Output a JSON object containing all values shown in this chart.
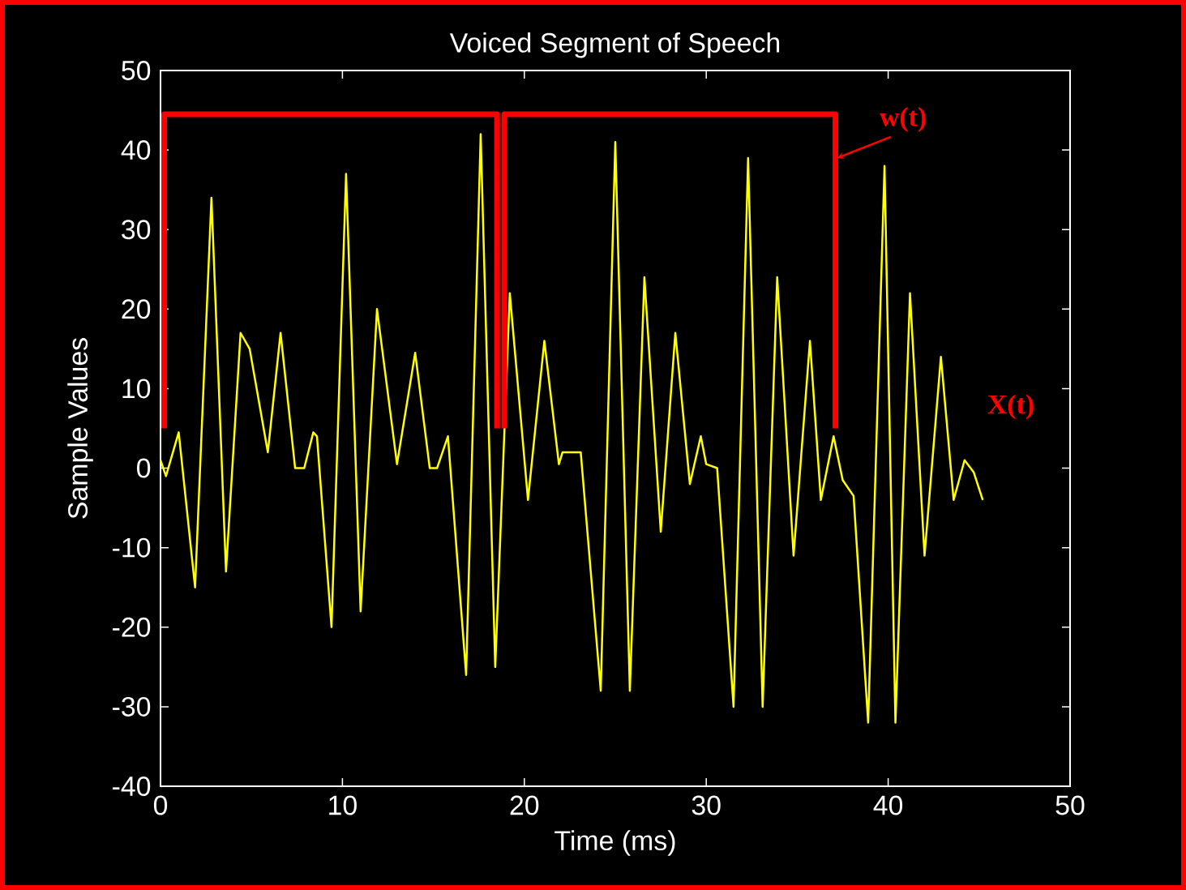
{
  "chart_data": {
    "type": "line",
    "title": "Voiced Segment of Speech",
    "xlabel": "Time (ms)",
    "ylabel": "Sample Values",
    "xlim": [
      0,
      50
    ],
    "ylim": [
      -40,
      50
    ],
    "xticks": [
      0,
      10,
      20,
      30,
      40,
      50
    ],
    "yticks": [
      -40,
      -30,
      -20,
      -10,
      0,
      10,
      20,
      30,
      40,
      50
    ],
    "series": [
      {
        "color": "#ffff00",
        "x": [
          0,
          0.3,
          1.0,
          1.9,
          2.8,
          3.6,
          4.4,
          4.9,
          5.9,
          6.6,
          7.4,
          7.9,
          8.4,
          8.6,
          9.4,
          10.2,
          11.0,
          11.9,
          13.0,
          14.0,
          14.8,
          15.2,
          15.8,
          16.8,
          17.6,
          18.4,
          19.2,
          20.2,
          21.1,
          21.9,
          22.1,
          23.1,
          24.2,
          25.0,
          25.8,
          26.6,
          27.5,
          28.3,
          29.1,
          29.7,
          30.0,
          30.6,
          31.5,
          32.3,
          33.1,
          33.9,
          34.8,
          35.7,
          36.3,
          37.0,
          37.5,
          38.1,
          38.9,
          39.8,
          40.4,
          41.2,
          42.0,
          42.9,
          43.6,
          44.2,
          44.7,
          45.2
        ],
        "values": [
          1,
          -1,
          4.5,
          -15,
          34,
          -13,
          17,
          15,
          2,
          17,
          0,
          0,
          4.5,
          4,
          -20,
          37,
          -18,
          20,
          0.5,
          14.5,
          0,
          0,
          4,
          -26,
          42,
          -25,
          22,
          -4,
          16,
          0.5,
          2,
          2,
          -28,
          41,
          -28,
          24,
          -8,
          17,
          -2,
          4,
          0.5,
          0,
          -30,
          39,
          -30,
          24,
          -11,
          16,
          -4,
          4,
          -1.5,
          -3.5,
          -32,
          38,
          -32,
          22,
          -11,
          14,
          -4,
          1,
          -0.5,
          -4
        ]
      },
      {
        "color": "#ff0000",
        "x": [
          0.2,
          0.2,
          18.5,
          18.5
        ],
        "values": [
          5,
          44.5,
          44.5,
          5
        ]
      },
      {
        "color": "#ff0000",
        "x": [
          18.9,
          18.9,
          37.1,
          37.1
        ],
        "values": [
          5,
          44.5,
          44.5,
          5
        ]
      }
    ],
    "annotations": [
      {
        "text": "w(t)",
        "x": 37.2,
        "y": 39
      },
      "X(t)"
    ]
  }
}
